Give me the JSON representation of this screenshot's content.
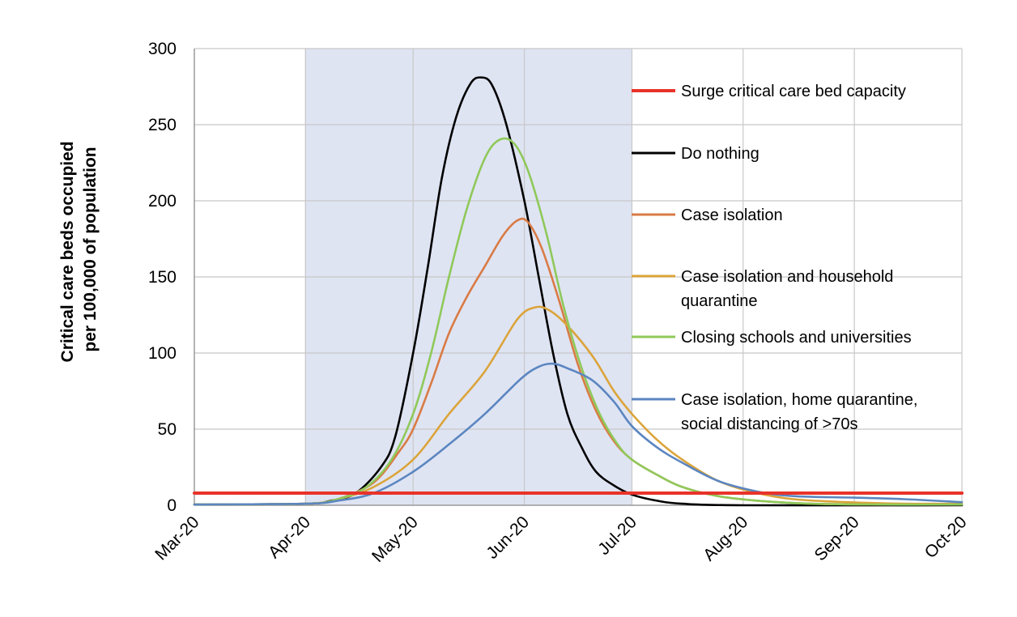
{
  "chart_data": {
    "type": "line",
    "ylabel_lines": [
      "Critical care beds occupied",
      "per 100,000 of population"
    ],
    "xlabel": "",
    "x_ticks": [
      "Mar-20",
      "Apr-20",
      "May-20",
      "Jun-20",
      "Jul-20",
      "Aug-20",
      "Sep-20",
      "Oct-20"
    ],
    "y_ticks": [
      "0",
      "50",
      "100",
      "150",
      "200",
      "250",
      "300"
    ],
    "ylim": [
      0,
      300
    ],
    "grid": true,
    "shaded_period": {
      "from": "2020-04-01",
      "to": "2020-07-01",
      "color": "#dfe4f3"
    },
    "legend_placement": "right",
    "colors": {
      "capacity": "#e8332a",
      "do_nothing": "#000000",
      "case_isolation": "#d97b45",
      "household": "#dba43a",
      "schools": "#8fc95a",
      "distancing": "#5b86c0"
    },
    "series": [
      {
        "name": "Surge critical care bed capacity",
        "color": "#e8332a",
        "points": [
          [
            "2020-03-01",
            8
          ],
          [
            "2020-10-01",
            8
          ]
        ]
      },
      {
        "name": "Do nothing",
        "color": "#000000",
        "points": [
          [
            "2020-03-01",
            0.5
          ],
          [
            "2020-04-01",
            1
          ],
          [
            "2020-04-08",
            3
          ],
          [
            "2020-04-15",
            8
          ],
          [
            "2020-04-22",
            25
          ],
          [
            "2020-04-26",
            45
          ],
          [
            "2020-05-01",
            100
          ],
          [
            "2020-05-05",
            155
          ],
          [
            "2020-05-09",
            215
          ],
          [
            "2020-05-13",
            255
          ],
          [
            "2020-05-17",
            277
          ],
          [
            "2020-05-20",
            281
          ],
          [
            "2020-05-23",
            276
          ],
          [
            "2020-05-27",
            250
          ],
          [
            "2020-06-01",
            200
          ],
          [
            "2020-06-05",
            150
          ],
          [
            "2020-06-09",
            100
          ],
          [
            "2020-06-13",
            60
          ],
          [
            "2020-06-17",
            38
          ],
          [
            "2020-06-21",
            22
          ],
          [
            "2020-06-26",
            13
          ],
          [
            "2020-07-01",
            7
          ],
          [
            "2020-07-08",
            3
          ],
          [
            "2020-07-15",
            1
          ],
          [
            "2020-08-01",
            0
          ],
          [
            "2020-10-01",
            0
          ]
        ]
      },
      {
        "name": "Case isolation",
        "color": "#d97b45",
        "points": [
          [
            "2020-03-01",
            0.5
          ],
          [
            "2020-04-01",
            1
          ],
          [
            "2020-04-10",
            4
          ],
          [
            "2020-04-20",
            15
          ],
          [
            "2020-04-27",
            35
          ],
          [
            "2020-05-01",
            50
          ],
          [
            "2020-05-06",
            80
          ],
          [
            "2020-05-11",
            113
          ],
          [
            "2020-05-16",
            137
          ],
          [
            "2020-05-21",
            157
          ],
          [
            "2020-05-26",
            177
          ],
          [
            "2020-05-30",
            187
          ],
          [
            "2020-06-02",
            186
          ],
          [
            "2020-06-06",
            168
          ],
          [
            "2020-06-11",
            132
          ],
          [
            "2020-06-16",
            92
          ],
          [
            "2020-06-21",
            62
          ],
          [
            "2020-06-26",
            42
          ],
          [
            "2020-07-01",
            30
          ],
          [
            "2020-07-08",
            20
          ],
          [
            "2020-07-15",
            12
          ],
          [
            "2020-07-25",
            6
          ],
          [
            "2020-08-05",
            3
          ],
          [
            "2020-08-20",
            1
          ],
          [
            "2020-09-10",
            0.5
          ],
          [
            "2020-10-01",
            0.5
          ]
        ]
      },
      {
        "name": "Case isolation and household quarantine",
        "color": "#dba43a",
        "points": [
          [
            "2020-03-01",
            0.5
          ],
          [
            "2020-04-01",
            1
          ],
          [
            "2020-04-10",
            4
          ],
          [
            "2020-04-20",
            12
          ],
          [
            "2020-05-01",
            30
          ],
          [
            "2020-05-11",
            60
          ],
          [
            "2020-05-21",
            88
          ],
          [
            "2020-05-30",
            122
          ],
          [
            "2020-06-04",
            130
          ],
          [
            "2020-06-08",
            128
          ],
          [
            "2020-06-13",
            118
          ],
          [
            "2020-06-20",
            98
          ],
          [
            "2020-06-26",
            75
          ],
          [
            "2020-07-01",
            60
          ],
          [
            "2020-07-08",
            43
          ],
          [
            "2020-07-15",
            30
          ],
          [
            "2020-07-25",
            16
          ],
          [
            "2020-08-05",
            8
          ],
          [
            "2020-08-15",
            4
          ],
          [
            "2020-08-30",
            2
          ],
          [
            "2020-09-15",
            1
          ],
          [
            "2020-10-01",
            1
          ]
        ]
      },
      {
        "name": "Closing schools and universities",
        "color": "#8fc95a",
        "points": [
          [
            "2020-03-01",
            0.5
          ],
          [
            "2020-04-01",
            1
          ],
          [
            "2020-04-10",
            4
          ],
          [
            "2020-04-18",
            12
          ],
          [
            "2020-04-25",
            30
          ],
          [
            "2020-05-01",
            60
          ],
          [
            "2020-05-06",
            100
          ],
          [
            "2020-05-11",
            150
          ],
          [
            "2020-05-16",
            195
          ],
          [
            "2020-05-21",
            228
          ],
          [
            "2020-05-25",
            240
          ],
          [
            "2020-05-29",
            238
          ],
          [
            "2020-06-02",
            220
          ],
          [
            "2020-06-07",
            180
          ],
          [
            "2020-06-12",
            130
          ],
          [
            "2020-06-17",
            90
          ],
          [
            "2020-06-22",
            60
          ],
          [
            "2020-06-27",
            40
          ],
          [
            "2020-07-01",
            30
          ],
          [
            "2020-07-08",
            20
          ],
          [
            "2020-07-15",
            12
          ],
          [
            "2020-07-25",
            6
          ],
          [
            "2020-08-05",
            3
          ],
          [
            "2020-08-20",
            1
          ],
          [
            "2020-09-10",
            0.5
          ],
          [
            "2020-10-01",
            0.5
          ]
        ]
      },
      {
        "name": "Case isolation, home quarantine, social distancing of >70s",
        "color": "#5b86c0",
        "points": [
          [
            "2020-03-01",
            0.5
          ],
          [
            "2020-04-01",
            1
          ],
          [
            "2020-04-10",
            3
          ],
          [
            "2020-04-20",
            8
          ],
          [
            "2020-05-01",
            22
          ],
          [
            "2020-05-11",
            40
          ],
          [
            "2020-05-21",
            60
          ],
          [
            "2020-05-31",
            83
          ],
          [
            "2020-06-05",
            91
          ],
          [
            "2020-06-09",
            93
          ],
          [
            "2020-06-13",
            90
          ],
          [
            "2020-06-20",
            82
          ],
          [
            "2020-06-26",
            68
          ],
          [
            "2020-07-01",
            52
          ],
          [
            "2020-07-08",
            38
          ],
          [
            "2020-07-15",
            28
          ],
          [
            "2020-07-25",
            16
          ],
          [
            "2020-08-05",
            9
          ],
          [
            "2020-08-15",
            6
          ],
          [
            "2020-09-01",
            5
          ],
          [
            "2020-09-15",
            4
          ],
          [
            "2020-10-01",
            2
          ]
        ]
      }
    ],
    "legend": [
      {
        "key": "capacity",
        "lines": [
          "Surge critical care bed capacity"
        ]
      },
      {
        "key": "do_nothing",
        "lines": [
          "Do nothing"
        ]
      },
      {
        "key": "case_isolation",
        "lines": [
          "Case isolation"
        ]
      },
      {
        "key": "household",
        "lines": [
          "Case isolation and household",
          "quarantine"
        ]
      },
      {
        "key": "schools",
        "lines": [
          "Closing schools and universities"
        ]
      },
      {
        "key": "distancing",
        "lines": [
          "Case isolation, home quarantine,",
          "social distancing of >70s"
        ]
      }
    ]
  }
}
